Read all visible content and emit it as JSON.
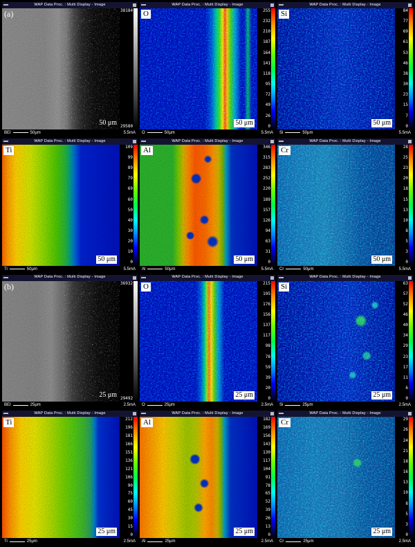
{
  "window_title": "WAP Data Proc. : Multi Display - Image",
  "colors": {
    "background": "#000000",
    "colorbar_top": "#ff0000",
    "colorbar_bottom": "#000000",
    "map_blue": "#000ac8",
    "label_box": "#ffffff"
  },
  "tiles": [
    {
      "kind": "bse",
      "panel_label": "(a)",
      "scale": "50 μm",
      "ticks": [
        "38184",
        "29580"
      ],
      "status_left": "BEI",
      "status_scale": "50μm",
      "status_right": "5.5mA"
    },
    {
      "kind": "map",
      "element": "O",
      "scale": "50 μm",
      "ticks": [
        "255",
        "232",
        "210",
        "187",
        "164",
        "141",
        "118",
        "95",
        "72",
        "49",
        "26",
        "0"
      ],
      "status_left": "O",
      "status_scale": "50μm",
      "status_right": "5.5mA"
    },
    {
      "kind": "map",
      "element": "Si",
      "scale": "50 μm",
      "ticks": [
        "84",
        "77",
        "69",
        "61",
        "53",
        "46",
        "38",
        "30",
        "23",
        "15",
        "7",
        "0"
      ],
      "status_left": "Si",
      "status_scale": "50μm",
      "status_right": "5.5mA"
    },
    {
      "kind": "map",
      "element": "Ti",
      "scale": "50 μm",
      "ticks": [
        "109",
        "99",
        "89",
        "79",
        "69",
        "60",
        "50",
        "40",
        "30",
        "20",
        "10",
        "0"
      ],
      "status_left": "Ti",
      "status_scale": "50μm",
      "status_right": "5.5mA"
    },
    {
      "kind": "map",
      "element": "Al",
      "scale": "50 μm",
      "ticks": [
        "346",
        "315",
        "283",
        "252",
        "220",
        "189",
        "157",
        "126",
        "94",
        "63",
        "31",
        "0"
      ],
      "status_left": "Al",
      "status_scale": "50μm",
      "status_right": "5.5mA"
    },
    {
      "kind": "map",
      "element": "Cr",
      "scale": "50 μm",
      "ticks": [
        "28",
        "25",
        "23",
        "20",
        "18",
        "15",
        "13",
        "10",
        "8",
        "5",
        "3",
        "0"
      ],
      "status_left": "Cr",
      "status_scale": "50μm",
      "status_right": "5.5mA"
    },
    {
      "kind": "bse",
      "panel_label": "(b)",
      "scale": "25 μm",
      "ticks": [
        "36932",
        "29492"
      ],
      "status_left": "BEI",
      "status_scale": "25μm",
      "status_right": "2.5mA"
    },
    {
      "kind": "map",
      "element": "O",
      "scale": "25 μm",
      "ticks": [
        "215",
        "195",
        "176",
        "156",
        "137",
        "117",
        "98",
        "78",
        "59",
        "39",
        "20",
        "0"
      ],
      "status_left": "O",
      "status_scale": "25μm",
      "status_right": "2.5mA"
    },
    {
      "kind": "map",
      "element": "Si",
      "scale": "25 μm",
      "ticks": [
        "63",
        "57",
        "52",
        "46",
        "40",
        "34",
        "29",
        "23",
        "17",
        "11",
        "6",
        "0"
      ],
      "status_left": "Si",
      "status_scale": "25μm",
      "status_right": "2.5mA"
    },
    {
      "kind": "map",
      "element": "Ti",
      "scale": "25 μm",
      "ticks": [
        "212",
        "196",
        "181",
        "166",
        "151",
        "136",
        "121",
        "106",
        "90",
        "75",
        "60",
        "45",
        "30",
        "15",
        "0"
      ],
      "status_left": "Ti",
      "status_scale": "25μm",
      "status_right": "2.5mA"
    },
    {
      "kind": "map",
      "element": "Al",
      "scale": "25 μm",
      "ticks": [
        "182",
        "169",
        "156",
        "143",
        "130",
        "117",
        "104",
        "91",
        "78",
        "65",
        "52",
        "39",
        "26",
        "13",
        "0"
      ],
      "status_left": "Al",
      "status_scale": "25μm",
      "status_right": "2.5mA"
    },
    {
      "kind": "map",
      "element": "Cr",
      "scale": "25 μm",
      "ticks": [
        "29",
        "26",
        "24",
        "21",
        "18",
        "16",
        "13",
        "10",
        "8",
        "5",
        "3",
        "0"
      ],
      "status_left": "Cr",
      "status_scale": "25μm",
      "status_right": "2.5mA"
    }
  ]
}
